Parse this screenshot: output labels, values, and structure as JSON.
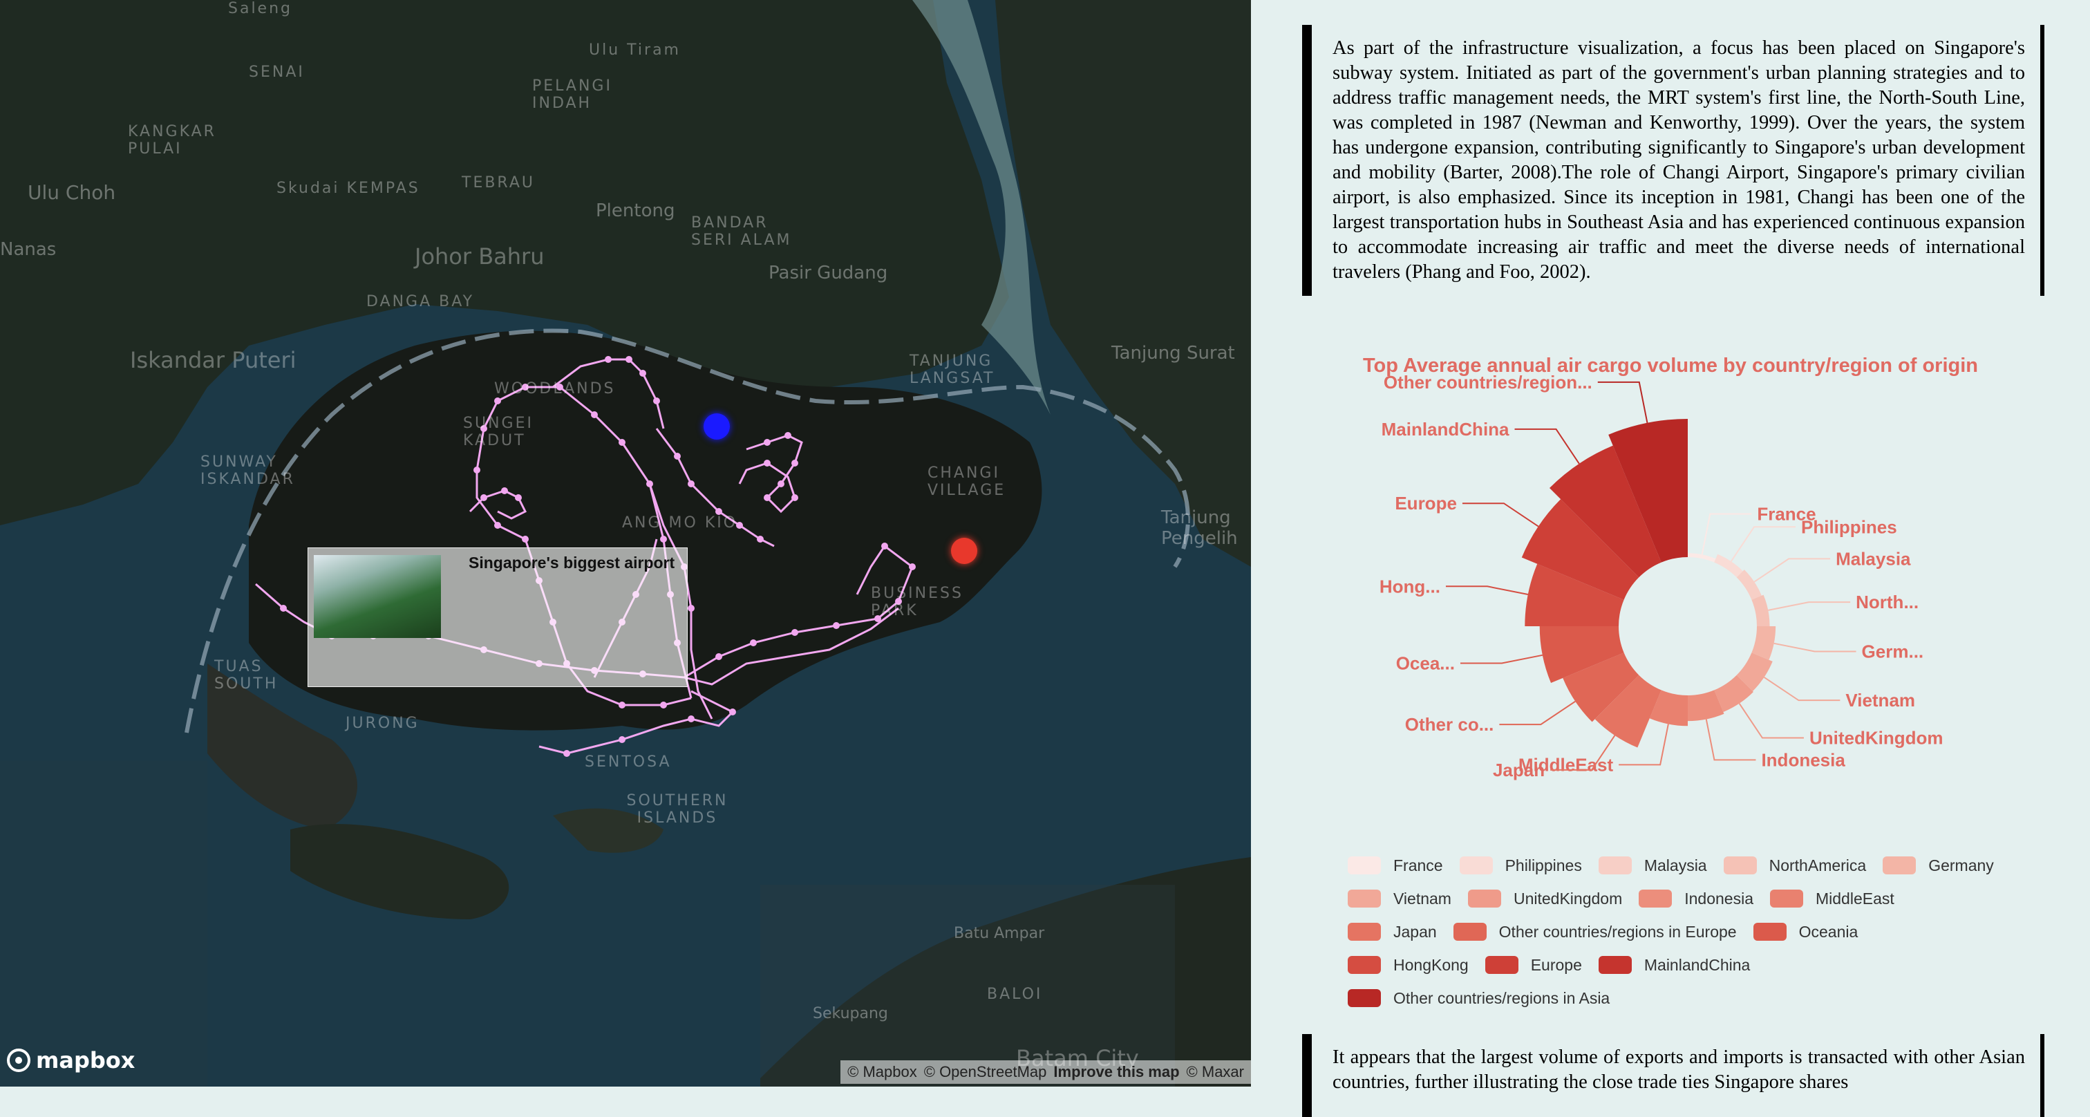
{
  "map": {
    "place_labels": [
      {
        "text": "Saleng"
      },
      {
        "text": "Ulu Tiram"
      },
      {
        "text": "SENAI"
      },
      {
        "text": "PELANGI INDAH"
      },
      {
        "text": "KANGKAR PULAI"
      },
      {
        "text": "Ulu Choh"
      },
      {
        "text": "Skudai KEMPAS"
      },
      {
        "text": "TEBRAU"
      },
      {
        "text": "Plentong"
      },
      {
        "text": "BANDAR SERI ALAM"
      },
      {
        "text": "Nanas"
      },
      {
        "text": "Johor Bahru"
      },
      {
        "text": "DANGA BAY"
      },
      {
        "text": "Pasir Gudang"
      },
      {
        "text": "Iskandar Puteri"
      },
      {
        "text": "Tanjung Surat"
      },
      {
        "text": "TANJUNG LANGSAT"
      },
      {
        "text": "WOODLANDS"
      },
      {
        "text": "SUNGEI KADUT"
      },
      {
        "text": "SUNWAY ISKANDAR"
      },
      {
        "text": "CHANGI VILLAGE"
      },
      {
        "text": "ANG MO KIO"
      },
      {
        "text": "Tanjung Pengelih"
      },
      {
        "text": "BUSINESS PARK"
      },
      {
        "text": "TUAS SOUTH"
      },
      {
        "text": "JURONG"
      },
      {
        "text": "SENTOSA"
      },
      {
        "text": "SOUTHERN ISLANDS"
      },
      {
        "text": "Batu Ampar"
      },
      {
        "text": "BALOI"
      },
      {
        "text": "Sekupang"
      },
      {
        "text": "Batam City"
      }
    ],
    "popup_title": "Singapore's biggest airport",
    "logo": "mapbox",
    "attribution": [
      "© Mapbox",
      "© OpenStreetMap",
      "Improve this map",
      "© Maxar"
    ],
    "colors": {
      "route": "#f2a7f0",
      "marker_blue": "#1a1aff",
      "marker_red": "#e8382c"
    }
  },
  "text_top": "As part of the infrastructure visualization, a focus has been placed on Singapore's subway system. Initiated as part of the government's urban planning strategies and to address traffic management needs, the MRT system's first line, the North-South Line, was completed in 1987 (Newman and Kenworthy, 1999). Over the years, the system has undergone expansion, contributing significantly to Singapore's urban development and mobility (Barter, 2008).The role of Changi Airport, Singapore's primary civilian airport, is also emphasized. Since its inception in 1981, Changi has been one of the largest transportation hubs in Southeast Asia and has experienced continuous expansion to accommodate increasing air traffic and meet the diverse needs of international travelers (Phang and Foo, 2002).",
  "text_bottom": "It appears that the largest volume of exports and imports is transacted with other Asian countries, further illustrating the close trade ties Singapore shares",
  "chart_data": {
    "type": "pie",
    "title": "Top Average annual air cargo volume by country/region of origin",
    "categories": [
      "France",
      "Philippines",
      "Malaysia",
      "NorthAmerica",
      "Germany",
      "Vietnam",
      "UnitedKingdom",
      "Indonesia",
      "MiddleEast",
      "Japan",
      "Other countries/regions in Europe",
      "Oceania",
      "HongKong",
      "Europe",
      "MainlandChina",
      "Other countries/regions in Asia"
    ],
    "outer_labels": [
      "France",
      "Philippines",
      "Malaysia",
      "North...",
      "Germ...",
      "Vietnam",
      "UnitedKingdom",
      "Indonesia",
      "MiddleEast",
      "Japan",
      "Other co...",
      "Ocea...",
      "Hong...",
      "Europe",
      "MainlandChina",
      "Other countries/region..."
    ],
    "values": [
      4,
      9,
      11,
      13,
      19,
      23,
      24,
      26,
      31,
      63,
      67,
      80,
      95,
      112,
      128,
      140
    ],
    "colors": [
      "#fbe9e6",
      "#f9dcd6",
      "#f7cfc6",
      "#f5c2b6",
      "#f3b5a6",
      "#f1a898",
      "#ef9b8a",
      "#ec8e7c",
      "#e9816f",
      "#e57462",
      "#e06756",
      "#db5a4b",
      "#d54d41",
      "#ce4037",
      "#c5342e",
      "#b82825"
    ],
    "inner_radius": 100,
    "radius_scale": [
      0,
      140
    ],
    "legend_rows": [
      [
        0,
        1,
        2,
        3,
        4
      ],
      [
        5,
        6,
        7,
        8
      ],
      [
        9,
        10,
        11
      ],
      [
        12,
        13,
        14
      ],
      [
        15
      ]
    ]
  }
}
